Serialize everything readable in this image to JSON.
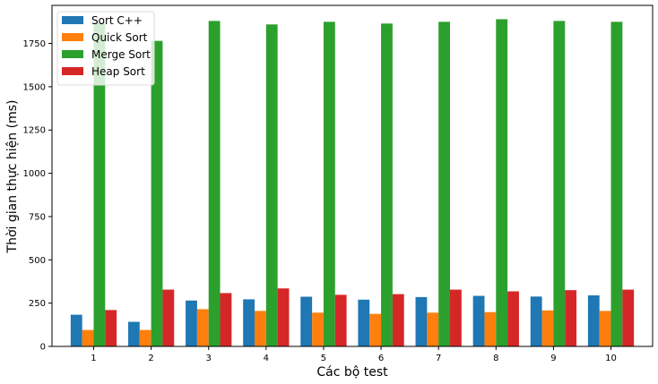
{
  "chart_data": {
    "type": "bar",
    "title": "",
    "xlabel": "Các bộ test",
    "ylabel": "Thời gian thực hiện (ms)",
    "categories": [
      "1",
      "2",
      "3",
      "4",
      "5",
      "6",
      "7",
      "8",
      "9",
      "10"
    ],
    "ylim": [
      0,
      1970
    ],
    "yticks": [
      0,
      250,
      500,
      750,
      1000,
      1250,
      1500,
      1750
    ],
    "grid": false,
    "legend_position": "top-left",
    "series": [
      {
        "name": "Sort C++",
        "color": "#1f77b4",
        "values": [
          183,
          142,
          265,
          272,
          287,
          270,
          285,
          292,
          288,
          295
        ]
      },
      {
        "name": "Quick Sort",
        "color": "#ff7f0e",
        "values": [
          95,
          95,
          215,
          205,
          195,
          188,
          195,
          198,
          208,
          205
        ]
      },
      {
        "name": "Merge Sort",
        "color": "#2ca02c",
        "values": [
          1870,
          1765,
          1880,
          1860,
          1875,
          1865,
          1875,
          1890,
          1880,
          1875
        ]
      },
      {
        "name": "Heap Sort",
        "color": "#d62728",
        "values": [
          210,
          328,
          308,
          335,
          298,
          302,
          328,
          318,
          325,
          328
        ]
      }
    ]
  }
}
